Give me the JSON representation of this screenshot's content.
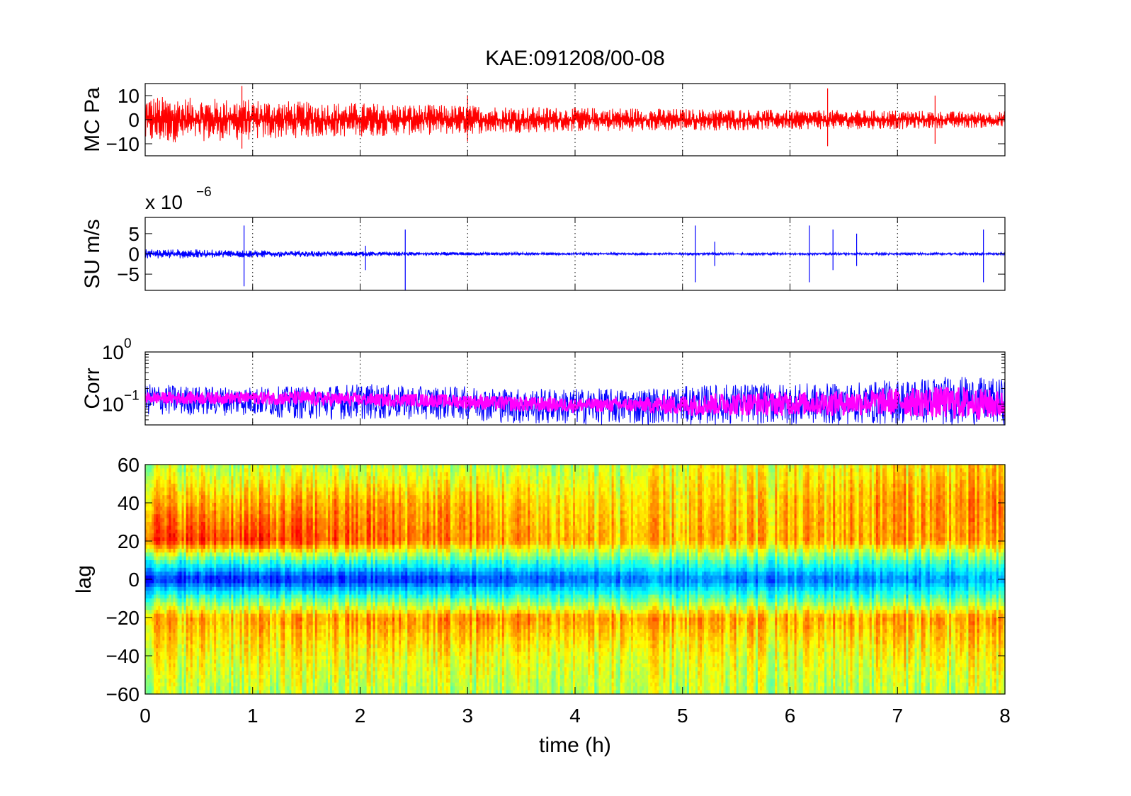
{
  "title": "KAE:091208/00-08",
  "colors": {
    "mc_trace": "#ff0000",
    "su_trace": "#0000ff",
    "corr_trace_1": "#0000ff",
    "corr_trace_2": "#ff00ff",
    "colormap": "jet"
  },
  "chart_data": [
    {
      "id": "mc",
      "type": "line",
      "title": "KAE:091208/00-08",
      "ylabel": "MC Pa",
      "xlim": [
        0,
        8
      ],
      "ylim": [
        -15,
        15
      ],
      "yticks": [
        -10,
        0,
        10
      ],
      "ytick_labels": [
        "−10",
        "0",
        "10"
      ],
      "grid": "x dotted",
      "series": [
        {
          "color": "#ff0000",
          "x": [
            0,
            0.5,
            1,
            1.5,
            2,
            2.5,
            3,
            3.5,
            4,
            4.5,
            5,
            5.5,
            6,
            6.5,
            7,
            7.5,
            8
          ],
          "upper": [
            10,
            9,
            8.5,
            7.5,
            7,
            6.5,
            6,
            5.5,
            5,
            5,
            4.5,
            4.5,
            4,
            4,
            4,
            3.5,
            3.5
          ],
          "lower": [
            -10,
            -9,
            -8.5,
            -7.5,
            -7,
            -6.5,
            -6,
            -5.5,
            -5,
            -5,
            -4.5,
            -4.5,
            -4,
            -4,
            -4,
            -3.5,
            -3.5
          ]
        }
      ],
      "spikes": [
        {
          "x": 0.9,
          "high": 14,
          "low": -12
        },
        {
          "x": 3.0,
          "high": 10,
          "low": -9
        },
        {
          "x": 6.35,
          "high": 13,
          "low": -11
        },
        {
          "x": 7.35,
          "high": 10,
          "low": -10
        }
      ]
    },
    {
      "id": "su",
      "type": "line",
      "ylabel": "SU m/s",
      "scale_label": "x 10",
      "scale_exponent": "−6",
      "xlim": [
        0,
        8
      ],
      "ylim": [
        -9,
        9
      ],
      "yticks": [
        -5,
        0,
        5
      ],
      "ytick_labels": [
        "−5",
        "0",
        "5"
      ],
      "grid": "x dotted",
      "series": [
        {
          "color": "#0000ff",
          "x": [
            0,
            0.5,
            1,
            1.5,
            2,
            2.5,
            3,
            3.5,
            4,
            4.5,
            5,
            5.5,
            6,
            6.5,
            7,
            7.5,
            8
          ],
          "upper": [
            1.2,
            1.1,
            0.9,
            0.8,
            0.6,
            0.5,
            0.4,
            0.4,
            0.3,
            0.3,
            0.3,
            0.3,
            0.3,
            0.3,
            0.3,
            0.3,
            0.3
          ],
          "lower": [
            -1.2,
            -1.1,
            -0.9,
            -0.8,
            -0.6,
            -0.5,
            -0.4,
            -0.4,
            -0.3,
            -0.3,
            -0.3,
            -0.3,
            -0.3,
            -0.3,
            -0.3,
            -0.3,
            -0.3
          ]
        }
      ],
      "spikes": [
        {
          "x": 0.92,
          "high": 7,
          "low": -8
        },
        {
          "x": 2.05,
          "high": 2,
          "low": -4
        },
        {
          "x": 2.42,
          "high": 6,
          "low": -9
        },
        {
          "x": 5.12,
          "high": 7,
          "low": -7
        },
        {
          "x": 5.3,
          "high": 3,
          "low": -3
        },
        {
          "x": 6.18,
          "high": 7,
          "low": -7
        },
        {
          "x": 6.4,
          "high": 6,
          "low": -4
        },
        {
          "x": 6.62,
          "high": 5,
          "low": -3
        },
        {
          "x": 7.8,
          "high": 6,
          "low": -7
        }
      ]
    },
    {
      "id": "corr",
      "type": "line",
      "ylabel": "Corr",
      "yscale": "log",
      "xlim": [
        0,
        8
      ],
      "ylim": [
        0.04,
        1
      ],
      "yticks": [
        0.1,
        1
      ],
      "ytick_labels": [
        {
          "base": "10",
          "exp": "−1"
        },
        {
          "base": "10",
          "exp": "0"
        }
      ],
      "grid": "x dotted",
      "series": [
        {
          "color": "#0000ff",
          "x": [
            0,
            0.5,
            1,
            1.5,
            2,
            2.5,
            3,
            3.5,
            4,
            4.5,
            5,
            5.5,
            6,
            6.5,
            7,
            7.5,
            8
          ],
          "upper": [
            0.25,
            0.22,
            0.22,
            0.22,
            0.25,
            0.22,
            0.22,
            0.2,
            0.2,
            0.2,
            0.22,
            0.25,
            0.25,
            0.25,
            0.3,
            0.35,
            0.3
          ],
          "lower": [
            0.06,
            0.06,
            0.06,
            0.05,
            0.05,
            0.05,
            0.05,
            0.04,
            0.04,
            0.04,
            0.04,
            0.04,
            0.04,
            0.04,
            0.04,
            0.04,
            0.04
          ]
        },
        {
          "color": "#ff00ff",
          "x": [
            0,
            0.5,
            1,
            1.5,
            2,
            2.5,
            3,
            3.5,
            4,
            4.5,
            5,
            5.5,
            6,
            6.5,
            7,
            7.5,
            8
          ],
          "upper": [
            0.17,
            0.17,
            0.17,
            0.18,
            0.16,
            0.16,
            0.15,
            0.14,
            0.13,
            0.13,
            0.15,
            0.17,
            0.17,
            0.18,
            0.2,
            0.22,
            0.18
          ],
          "lower": [
            0.1,
            0.1,
            0.1,
            0.09,
            0.09,
            0.09,
            0.08,
            0.07,
            0.07,
            0.07,
            0.06,
            0.06,
            0.06,
            0.06,
            0.06,
            0.05,
            0.05
          ]
        }
      ]
    },
    {
      "id": "lag",
      "type": "heatmap",
      "ylabel": "lag",
      "xlabel": "time (h)",
      "xlim": [
        0,
        8
      ],
      "ylim": [
        -60,
        60
      ],
      "xticks": [
        0,
        1,
        2,
        3,
        4,
        5,
        6,
        7,
        8
      ],
      "xtick_labels": [
        "0",
        "1",
        "2",
        "3",
        "4",
        "5",
        "6",
        "7",
        "8"
      ],
      "yticks": [
        -60,
        -40,
        -20,
        0,
        20,
        40,
        60
      ],
      "ytick_labels": [
        "−60",
        "−40",
        "−20",
        "0",
        "20",
        "40",
        "60"
      ],
      "colormap": "jet",
      "x_bands": [
        0,
        1,
        2,
        3,
        4,
        5,
        6,
        7,
        8
      ],
      "lag_rows": [
        60,
        40,
        20,
        10,
        0,
        -10,
        -20,
        -40,
        -60
      ],
      "values": [
        [
          0.55,
          0.55,
          0.55,
          0.55,
          0.55,
          0.6,
          0.6,
          0.65,
          0.65
        ],
        [
          0.7,
          0.7,
          0.72,
          0.7,
          0.65,
          0.65,
          0.68,
          0.72,
          0.72
        ],
        [
          0.82,
          0.82,
          0.78,
          0.74,
          0.7,
          0.68,
          0.7,
          0.72,
          0.7
        ],
        [
          0.45,
          0.45,
          0.45,
          0.45,
          0.45,
          0.45,
          0.45,
          0.45,
          0.45
        ],
        [
          0.15,
          0.15,
          0.15,
          0.18,
          0.22,
          0.24,
          0.22,
          0.25,
          0.28
        ],
        [
          0.45,
          0.45,
          0.45,
          0.45,
          0.45,
          0.45,
          0.45,
          0.45,
          0.45
        ],
        [
          0.7,
          0.7,
          0.72,
          0.74,
          0.72,
          0.7,
          0.7,
          0.72,
          0.7
        ],
        [
          0.62,
          0.62,
          0.62,
          0.62,
          0.6,
          0.6,
          0.6,
          0.62,
          0.62
        ],
        [
          0.55,
          0.55,
          0.55,
          0.55,
          0.55,
          0.55,
          0.55,
          0.55,
          0.55
        ]
      ]
    }
  ]
}
